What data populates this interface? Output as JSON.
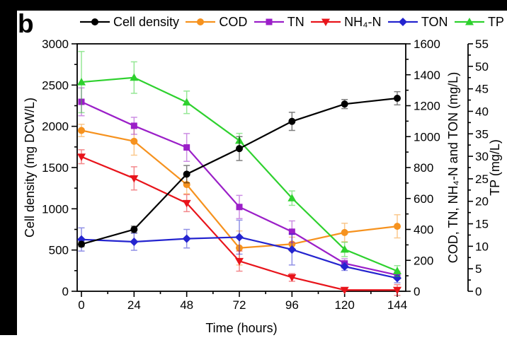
{
  "panel_label": "b",
  "chart_data": {
    "type": "line",
    "x": [
      0,
      24,
      48,
      72,
      96,
      120,
      144
    ],
    "x_ticks": [
      0,
      24,
      48,
      72,
      96,
      120,
      144
    ],
    "xlabel": "Time (hours)",
    "grid": false,
    "legend_position": "top",
    "axes": {
      "left": {
        "label": "Cell density (mg DCW/L)",
        "min": 0,
        "max": 3000,
        "major": 500,
        "minor": 250
      },
      "right": {
        "label": "COD, TN, NH₄-N and TON (mg/L)",
        "min": 0,
        "max": 1600,
        "major": 200,
        "minor": 100
      },
      "far_right": {
        "label": "TP (mg/L)",
        "min": 0,
        "max": 55,
        "major": 5,
        "minor": 2.5
      }
    },
    "series": [
      {
        "name": "Cell density",
        "axis": "left",
        "color": "#000000",
        "marker": "circle",
        "values": [
          570,
          750,
          1420,
          1730,
          2060,
          2270,
          2340
        ],
        "errors": [
          30,
          40,
          105,
          145,
          110,
          55,
          80
        ]
      },
      {
        "name": "COD",
        "axis": "right",
        "color": "#f6921e",
        "marker": "circle",
        "values": [
          1040,
          970,
          690,
          280,
          305,
          380,
          420
        ],
        "errors": [
          40,
          90,
          60,
          110,
          45,
          60,
          75
        ]
      },
      {
        "name": "TN",
        "axis": "right",
        "color": "#9b1fc8",
        "marker": "square",
        "values": [
          1225,
          1070,
          930,
          545,
          385,
          180,
          105
        ],
        "errors": [
          90,
          55,
          90,
          75,
          70,
          30,
          25
        ]
      },
      {
        "name": "NH₄-N",
        "axis": "right",
        "color": "#e8141b",
        "marker": "triangle-down",
        "values": [
          870,
          730,
          570,
          195,
          90,
          8,
          8
        ],
        "errors": [
          45,
          75,
          55,
          65,
          25,
          5,
          35
        ]
      },
      {
        "name": "TON",
        "axis": "right",
        "color": "#2424cf",
        "marker": "diamond",
        "values": [
          335,
          320,
          340,
          350,
          270,
          160,
          85
        ],
        "errors": [
          75,
          55,
          60,
          110,
          100,
          25,
          30
        ]
      },
      {
        "name": "TP",
        "axis": "far_right",
        "color": "#2ed12e",
        "marker": "triangle-up",
        "values": [
          46.5,
          47.5,
          42,
          33.5,
          20.7,
          9.3,
          4.5
        ],
        "errors": [
          6.8,
          3.5,
          2.5,
          1.6,
          1.6,
          1.6,
          1.2
        ]
      }
    ]
  }
}
